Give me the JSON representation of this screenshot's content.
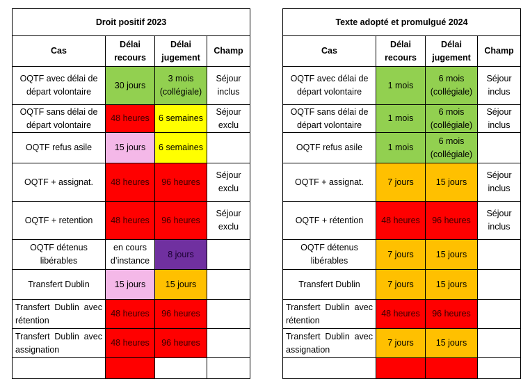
{
  "left": {
    "title": "Droit positif 2023",
    "headers": {
      "cas": "Cas",
      "recours": [
        "Délai",
        "recours"
      ],
      "jugement": [
        "Délai",
        "jugement"
      ],
      "champ": "Champ"
    },
    "rows": [
      {
        "cas": [
          "OQTF avec délai de",
          "départ volontaire"
        ],
        "recours": [
          "30 jours"
        ],
        "recours_color": "green",
        "jugement": [
          "3 mois",
          "(collégiale)"
        ],
        "jugement_color": "green",
        "champ": [
          "Séjour",
          "inclus"
        ],
        "h": 55
      },
      {
        "cas": [
          "OQTF sans délai de",
          "départ volontaire"
        ],
        "recours": [
          "48 heures"
        ],
        "recours_color": "red",
        "jugement": [
          "6 semaines"
        ],
        "jugement_color": "yellow",
        "champ": [
          "Séjour",
          "exclu"
        ],
        "h": 40
      },
      {
        "cas": [
          "OQTF refus asile"
        ],
        "recours": [
          "15 jours"
        ],
        "recours_color": "pink",
        "jugement": [
          "6 semaines"
        ],
        "jugement_color": "yellow",
        "champ": [],
        "h": 44
      },
      {
        "cas": [
          "OQTF + assignat."
        ],
        "recours": [
          "48 heures"
        ],
        "recours_color": "red",
        "jugement": [
          "96 heures"
        ],
        "jugement_color": "red",
        "champ": [
          "Séjour",
          "exclu"
        ],
        "h": 55
      },
      {
        "cas": [
          "OQTF + retention"
        ],
        "recours": [
          "48 heures"
        ],
        "recours_color": "red",
        "jugement": [
          "96 heures"
        ],
        "jugement_color": "red",
        "champ": [
          "Séjour",
          "exclu"
        ],
        "h": 55
      },
      {
        "cas": [
          "OQTF détenus",
          "libérables"
        ],
        "recours": [
          "en cours",
          "d’instance"
        ],
        "recours_color": "white",
        "jugement": [
          "8 jours"
        ],
        "jugement_color": "purple",
        "champ": [],
        "h": 43
      },
      {
        "cas": [
          "Transfert Dublin"
        ],
        "recours": [
          "15 jours"
        ],
        "recours_color": "pink",
        "jugement": [
          "15 jours"
        ],
        "jugement_color": "orange",
        "champ": [],
        "h": 43
      },
      {
        "cas": [
          "Transfert Dublin   avec",
          "rétention"
        ],
        "justify": true,
        "recours": [
          "48 heures"
        ],
        "recours_color": "red",
        "jugement": [
          "96 heures"
        ],
        "jugement_color": "red",
        "champ": [],
        "h": 42
      },
      {
        "cas": [
          "Transfert Dublin   avec",
          "assignation"
        ],
        "justify": true,
        "recours": [
          "48 heures"
        ],
        "recours_color": "red",
        "jugement": [
          "96 heures"
        ],
        "jugement_color": "red",
        "champ": [],
        "h": 42
      },
      {
        "cas": [],
        "recours": [],
        "recours_color": "red",
        "jugement": [],
        "jugement_color": "white",
        "champ": [],
        "h": 30
      }
    ]
  },
  "right": {
    "title": "Texte adopté et promulgué 2024",
    "headers": {
      "cas": "Cas",
      "recours": [
        "Délai",
        "recours"
      ],
      "jugement": [
        "Délai",
        "jugement"
      ],
      "champ": "Champ"
    },
    "rows": [
      {
        "cas": [
          "OQTF avec délai de",
          "départ volontaire"
        ],
        "recours": [
          "1 mois"
        ],
        "recours_color": "green",
        "jugement": [
          "6 mois",
          "(collégiale)"
        ],
        "jugement_color": "green",
        "champ": [
          "Séjour",
          "inclus"
        ],
        "h": 55
      },
      {
        "cas": [
          "OQTF sans délai de",
          "départ volontaire"
        ],
        "recours": [
          "1 mois"
        ],
        "recours_color": "green",
        "jugement": [
          "6 mois",
          "(collégiale)"
        ],
        "jugement_color": "green",
        "champ": [
          "Séjour",
          "inclus"
        ],
        "h": 40
      },
      {
        "cas": [
          "OQTF refus asile"
        ],
        "recours": [
          "1 mois"
        ],
        "recours_color": "green",
        "jugement": [
          "6 mois",
          "(collégiale)"
        ],
        "jugement_color": "green",
        "champ": [],
        "h": 44
      },
      {
        "cas": [
          "OQTF + assignat."
        ],
        "recours": [
          "7 jours"
        ],
        "recours_color": "orange",
        "jugement": [
          "15 jours"
        ],
        "jugement_color": "orange",
        "champ": [
          "Séjour",
          "inclus"
        ],
        "h": 55
      },
      {
        "cas": [
          "OQTF + rétention"
        ],
        "recours": [
          "48 heures"
        ],
        "recours_color": "red",
        "jugement": [
          "96 heures"
        ],
        "jugement_color": "red",
        "champ": [
          "Séjour",
          "inclus"
        ],
        "h": 55
      },
      {
        "cas": [
          "OQTF détenus",
          "libérables"
        ],
        "recours": [
          "7 jours"
        ],
        "recours_color": "orange",
        "jugement": [
          "15 jours"
        ],
        "jugement_color": "orange",
        "champ": [],
        "h": 43
      },
      {
        "cas": [
          "Transfert Dublin"
        ],
        "recours": [
          "7 jours"
        ],
        "recours_color": "orange",
        "jugement": [
          "15 jours"
        ],
        "jugement_color": "orange",
        "champ": [],
        "h": 43
      },
      {
        "cas": [
          "Transfert Dublin   avec",
          "rétention"
        ],
        "justify": true,
        "recours": [
          "48 heures"
        ],
        "recours_color": "red",
        "jugement": [
          "96 heures"
        ],
        "jugement_color": "red",
        "champ": [],
        "h": 42
      },
      {
        "cas": [
          "Transfert Dublin   avec",
          "assignation"
        ],
        "justify": true,
        "recours": [
          "7 jours"
        ],
        "recours_color": "orange",
        "jugement": [
          "15 jours"
        ],
        "jugement_color": "orange",
        "champ": [],
        "h": 42
      },
      {
        "cas": [],
        "recours": [],
        "recours_color": "red",
        "jugement": [],
        "jugement_color": "red",
        "champ": [],
        "h": 30
      }
    ]
  }
}
